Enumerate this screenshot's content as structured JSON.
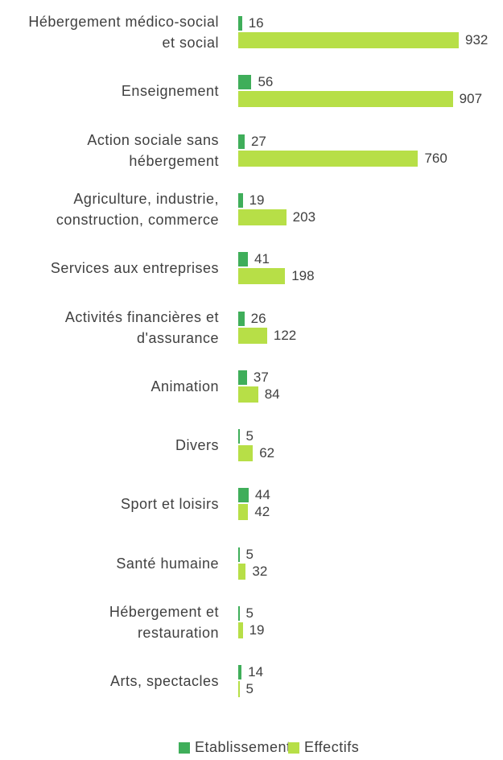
{
  "chart_data": {
    "type": "bar",
    "orientation": "horizontal",
    "categories": [
      "Hébergement médico-social et social",
      "Enseignement",
      "Action sociale sans hébergement",
      "Agriculture, industrie, construction, commerce",
      "Services aux entreprises",
      "Activités financières et d'assurance",
      "Animation",
      "Divers",
      "Sport et loisirs",
      "Santé humaine",
      "Hébergement et restauration",
      "Arts, spectacles"
    ],
    "series": [
      {
        "name": "Etablissements",
        "color": "#3fae5a",
        "values": [
          16,
          56,
          27,
          19,
          41,
          26,
          37,
          5,
          44,
          5,
          5,
          14
        ]
      },
      {
        "name": "Effectifs",
        "color": "#b7df47",
        "values": [
          932,
          907,
          760,
          203,
          198,
          122,
          84,
          62,
          42,
          32,
          19,
          5
        ]
      }
    ],
    "xlim": [
      0,
      1000
    ],
    "legend": "bottom"
  }
}
